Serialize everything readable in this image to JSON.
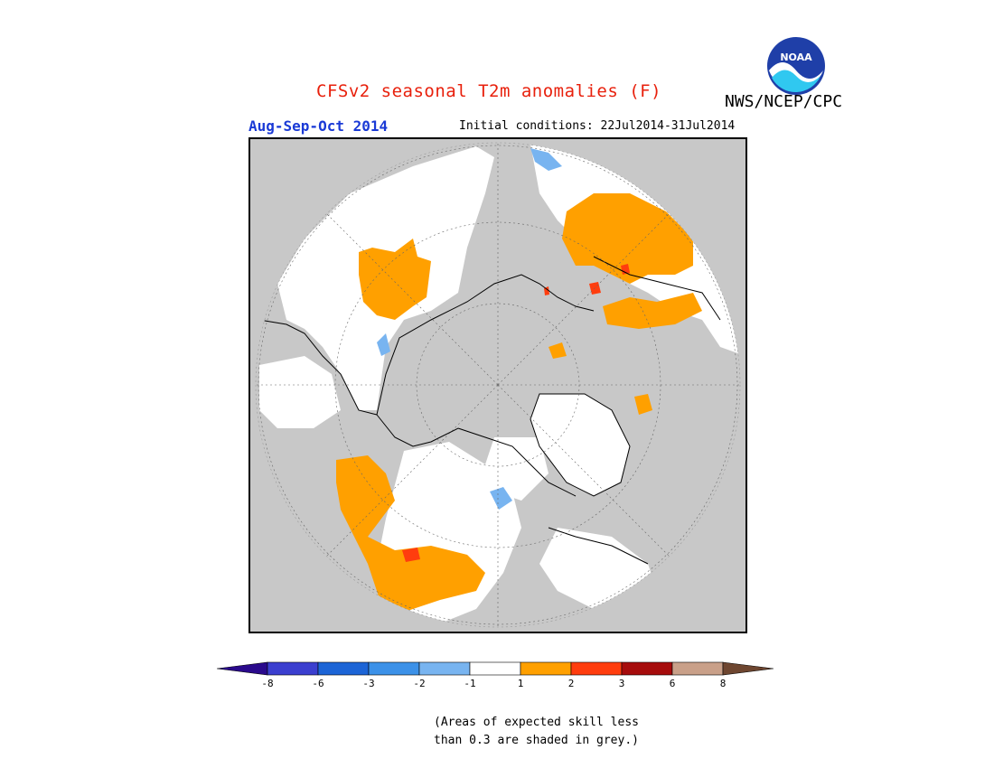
{
  "header": {
    "title": "CFSv2 seasonal T2m anomalies (F)",
    "organization": "NWS/NCEP/CPC",
    "season": "Aug-Sep-Oct 2014",
    "initial_conditions": "Initial conditions: 22Jul2014-31Jul2014"
  },
  "logo": {
    "text": "NOAA",
    "icon": "noaa-logo-icon"
  },
  "map": {
    "projection": "north polar stereographic",
    "background_color": "#c8c8c8",
    "land_color": "#ffffff"
  },
  "legend": {
    "bins": [
      {
        "color": "#2a0a8c"
      },
      {
        "color": "#3b3fcf"
      },
      {
        "color": "#1c64d6"
      },
      {
        "color": "#3c91e8"
      },
      {
        "color": "#78b4f0"
      },
      {
        "color": "#ffffff"
      },
      {
        "color": "#ffa000"
      },
      {
        "color": "#ff3d0e"
      },
      {
        "color": "#a60c0c"
      },
      {
        "color": "#c9a089"
      },
      {
        "color": "#6e4630"
      }
    ],
    "ticks": [
      "-8",
      "-6",
      "-3",
      "-2",
      "-1",
      "1",
      "2",
      "3",
      "6",
      "8"
    ]
  },
  "note": {
    "line1": "(Areas of expected skill less",
    "line2": "than 0.3 are shaded in grey.)"
  }
}
